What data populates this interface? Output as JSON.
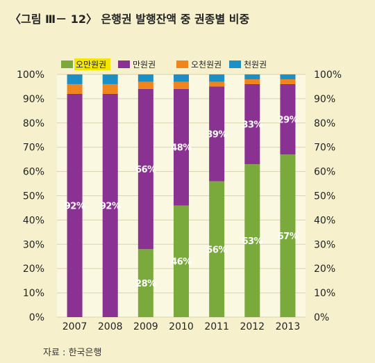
{
  "figure": {
    "title": "〈그림 Ⅲ－ 12〉 은행권 발행잔액 중 권종별 비중",
    "source": "자료 : 한국은행"
  },
  "colors": {
    "background": "#f6f1cc",
    "plot_background": "#fbf8e1",
    "grid": "#d8d2b0",
    "legend_highlight": "#f3e600",
    "label_text": "#ffffff"
  },
  "chart_data": {
    "type": "bar",
    "stacked": true,
    "categories": [
      "2007",
      "2008",
      "2009",
      "2010",
      "2011",
      "2012",
      "2013"
    ],
    "series": [
      {
        "name": "오만원권",
        "color": "#7aaa3c",
        "values": [
          0,
          0,
          28,
          46,
          56,
          63,
          67
        ]
      },
      {
        "name": "만원권",
        "color": "#8a3291",
        "values": [
          92,
          92,
          66,
          48,
          39,
          33,
          29
        ]
      },
      {
        "name": "오천원권",
        "color": "#f0851e",
        "values": [
          4,
          4,
          3,
          3,
          2,
          2,
          2
        ]
      },
      {
        "name": "천원권",
        "color": "#1b8fc6",
        "values": [
          4,
          4,
          3,
          3,
          3,
          2,
          2
        ]
      }
    ],
    "data_labels": {
      "오만원권": [
        "",
        "",
        "28%",
        "46%",
        "56%",
        "63%",
        "67%"
      ],
      "만원권": [
        "92%",
        "92%",
        "66%",
        "48%",
        "39%",
        "33%",
        "29%"
      ]
    },
    "y_ticks": [
      "0%",
      "10%",
      "20%",
      "30%",
      "40%",
      "50%",
      "60%",
      "70%",
      "80%",
      "90%",
      "100%"
    ],
    "ylim": [
      0,
      100
    ],
    "grid": true,
    "legend_position": "top",
    "legend_highlighted": "오만원권"
  }
}
